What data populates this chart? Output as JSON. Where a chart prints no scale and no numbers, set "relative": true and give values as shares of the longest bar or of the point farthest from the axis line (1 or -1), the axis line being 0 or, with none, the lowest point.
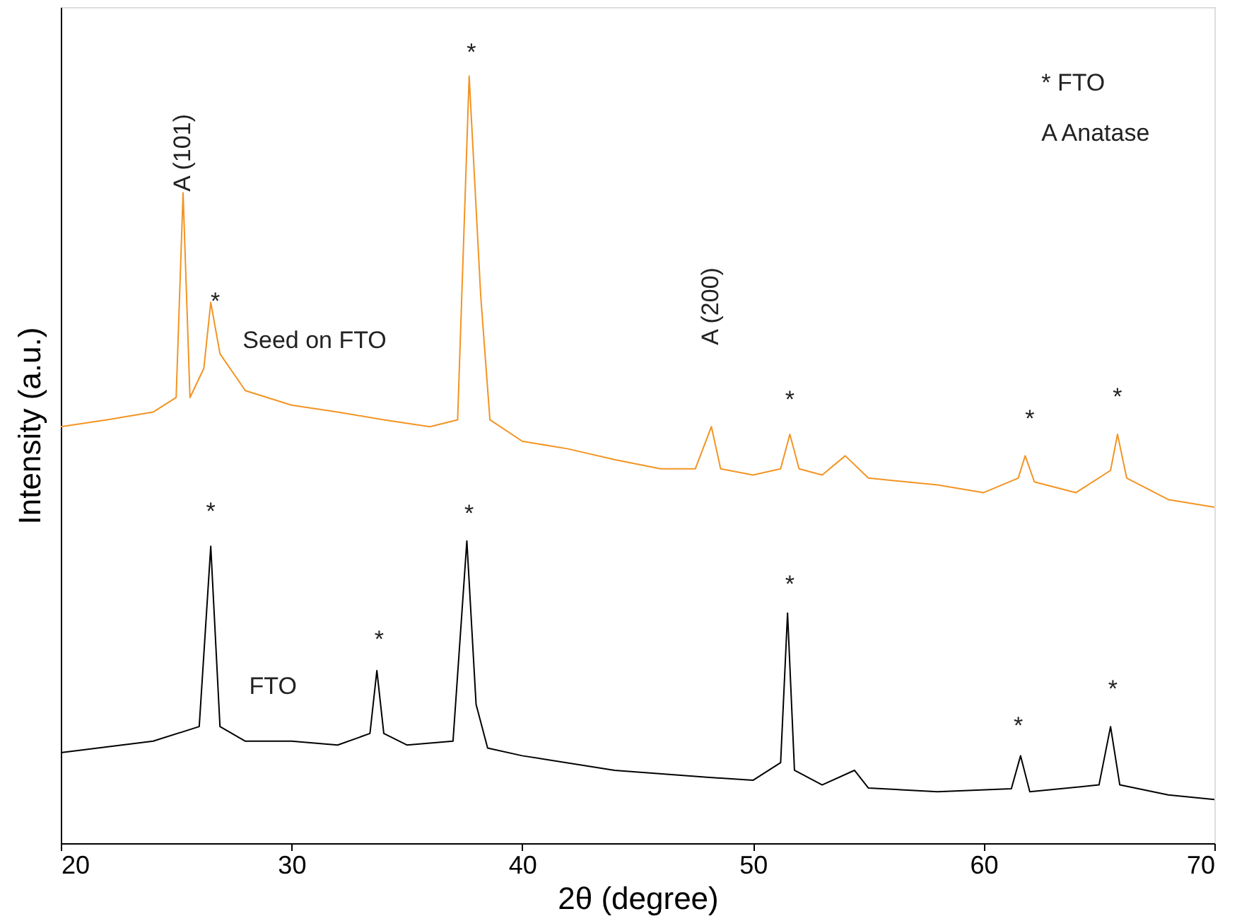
{
  "chart_data": {
    "type": "line",
    "relative": true,
    "xlabel": "2θ (degree)",
    "ylabel": "Intensity (a.u.)",
    "xlim": [
      20,
      70
    ],
    "xticks": [
      20,
      30,
      40,
      50,
      60,
      70
    ],
    "grid": false,
    "line_style": "solid",
    "marker": "none",
    "series": [
      {
        "color": "#f39423",
        "x": [
          20,
          22,
          24,
          25,
          25.3,
          25.6,
          26.2,
          26.5,
          26.9,
          28,
          30,
          32,
          34,
          36,
          37.2,
          37.7,
          38.2,
          38.6,
          40,
          42,
          44,
          46,
          47.5,
          48.2,
          48.6,
          50,
          51.2,
          51.6,
          52,
          53,
          54,
          55,
          58,
          60,
          61.5,
          61.8,
          62.2,
          64,
          65.5,
          65.8,
          66.2,
          68,
          70
        ],
        "values": [
          0.543,
          0.552,
          0.562,
          0.581,
          0.848,
          0.581,
          0.619,
          0.705,
          0.638,
          0.59,
          0.571,
          0.562,
          0.552,
          0.543,
          0.552,
          1.0,
          0.714,
          0.552,
          0.524,
          0.514,
          0.5,
          0.488,
          0.488,
          0.543,
          0.488,
          0.48,
          0.488,
          0.533,
          0.488,
          0.48,
          0.505,
          0.476,
          0.467,
          0.457,
          0.476,
          0.505,
          0.471,
          0.457,
          0.486,
          0.533,
          0.476,
          0.448,
          0.438
        ]
      },
      {
        "color": "#000000",
        "x": [
          20,
          24,
          26,
          26.5,
          26.9,
          28,
          30,
          32,
          33.4,
          33.7,
          34,
          35,
          37,
          37.6,
          38,
          38.5,
          40,
          44,
          48,
          50,
          51.2,
          51.5,
          51.8,
          53,
          54.4,
          55,
          58,
          61.2,
          61.6,
          62,
          65,
          65.5,
          65.9,
          68,
          70
        ],
        "values": [
          0.118,
          0.133,
          0.152,
          0.387,
          0.152,
          0.133,
          0.133,
          0.128,
          0.143,
          0.225,
          0.143,
          0.128,
          0.133,
          0.394,
          0.181,
          0.124,
          0.114,
          0.095,
          0.086,
          0.082,
          0.105,
          0.3,
          0.095,
          0.076,
          0.095,
          0.072,
          0.067,
          0.071,
          0.114,
          0.067,
          0.076,
          0.152,
          0.076,
          0.063,
          0.057
        ]
      }
    ],
    "annotations": [
      "A (101)",
      "*",
      "Seed on FTO",
      "*",
      "A (200)",
      "*",
      "*",
      "*",
      "*",
      "*",
      "*",
      "*",
      "*",
      "*",
      "FTO",
      "* FTO",
      "A Anatase"
    ]
  }
}
